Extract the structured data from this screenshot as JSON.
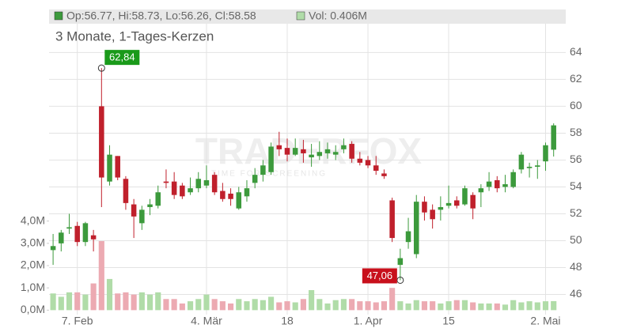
{
  "chart_data": {
    "type": "candlestick",
    "title": "3 Monate, 1-Tages-Kerzen",
    "header_ohlc": "Op:56.77, Hi:58.73, Lo:56.26, Cl:58.58",
    "header_volume": "Vol: 0.406M",
    "watermark": "TRADERFOX",
    "watermark_sub": "TIME FOR SCREENING",
    "up_color": "#3c9a3c",
    "down_color": "#c0202c",
    "up_volume_color": "#b0dca8",
    "down_volume_color": "#ecaab2",
    "x": [
      0,
      1,
      2,
      3,
      4,
      5,
      6,
      7,
      8,
      9,
      10,
      11,
      12,
      13,
      14,
      15,
      16,
      17,
      18,
      19,
      20,
      21,
      22,
      23,
      24,
      25,
      26,
      27,
      28,
      29,
      30,
      31,
      32,
      33,
      34,
      35,
      36,
      37,
      38,
      39,
      40,
      41,
      42,
      43,
      44,
      45,
      46,
      47,
      48,
      49,
      50,
      51,
      52,
      53,
      54,
      55,
      56,
      57,
      58,
      59,
      60,
      61,
      62
    ],
    "open": [
      49.3,
      49.8,
      50.9,
      51.1,
      49.9,
      50.4,
      60.0,
      54.4,
      56.3,
      54.6,
      52.7,
      51.3,
      52.5,
      52.6,
      54.4,
      54.4,
      54.1,
      53.6,
      53.9,
      54.1,
      54.9,
      53.7,
      53.5,
      52.4,
      53.3,
      54.3,
      54.9,
      55.1,
      57.1,
      56.9,
      56.4,
      56.8,
      56.2,
      56.3,
      56.5,
      56.4,
      56.8,
      57.2,
      56.1,
      56.0,
      55.6,
      55.0,
      53.0,
      48.2,
      49.9,
      49.0,
      52.9,
      52.3,
      52.3,
      52.6,
      53.0,
      52.7,
      53.4,
      53.6,
      54.0,
      54.5,
      54.0,
      54.0,
      55.3,
      55.4,
      55.5,
      55.9,
      56.77
    ],
    "high": [
      50.5,
      50.8,
      52.0,
      51.4,
      51.4,
      50.8,
      62.84,
      57.1,
      56.3,
      54.8,
      53.1,
      52.6,
      53.1,
      54.1,
      55.3,
      55.1,
      54.3,
      54.7,
      55.1,
      55.6,
      55.1,
      54.3,
      53.9,
      54.0,
      54.5,
      55.4,
      56.0,
      57.3,
      58.1,
      57.6,
      57.6,
      57.5,
      57.2,
      57.4,
      57.3,
      57.1,
      57.6,
      57.4,
      56.6,
      56.3,
      56.3,
      55.3,
      53.2,
      49.4,
      51.7,
      53.4,
      53.3,
      52.7,
      53.3,
      54.1,
      53.3,
      54.1,
      53.6,
      54.2,
      55.1,
      54.8,
      54.9,
      55.3,
      56.6,
      55.8,
      56.0,
      57.3,
      58.73
    ],
    "low": [
      48.2,
      49.2,
      50.5,
      49.6,
      49.6,
      49.2,
      52.5,
      54.1,
      54.5,
      52.3,
      50.2,
      50.8,
      51.9,
      52.4,
      53.9,
      53.1,
      53.1,
      53.4,
      53.6,
      53.9,
      53.4,
      52.9,
      52.6,
      52.3,
      52.9,
      53.9,
      54.4,
      54.9,
      56.3,
      55.9,
      56.3,
      55.8,
      55.5,
      56.0,
      56.1,
      56.0,
      56.5,
      55.8,
      55.6,
      55.4,
      54.9,
      54.6,
      49.9,
      47.06,
      49.4,
      48.7,
      51.5,
      50.9,
      51.5,
      52.4,
      52.4,
      52.6,
      51.6,
      52.5,
      53.7,
      53.6,
      53.6,
      53.9,
      55.0,
      54.7,
      54.6,
      55.2,
      56.26
    ],
    "close": [
      49.6,
      50.6,
      51.0,
      49.9,
      51.3,
      50.1,
      54.7,
      56.4,
      54.7,
      52.8,
      51.8,
      52.3,
      52.7,
      53.6,
      54.3,
      53.4,
      53.3,
      53.9,
      54.6,
      54.5,
      53.6,
      53.1,
      53.1,
      53.6,
      53.9,
      54.9,
      55.6,
      57.0,
      56.8,
      56.4,
      56.9,
      56.5,
      56.4,
      56.6,
      56.8,
      56.6,
      57.1,
      56.1,
      55.8,
      55.6,
      55.2,
      54.8,
      50.2,
      48.7,
      50.7,
      52.9,
      52.1,
      51.6,
      52.5,
      52.8,
      52.6,
      53.9,
      52.4,
      53.9,
      54.4,
      53.9,
      54.2,
      55.1,
      56.4,
      55.5,
      55.6,
      57.1,
      58.58
    ],
    "volume": [
      0.75,
      0.6,
      0.8,
      0.8,
      0.7,
      1.2,
      3.1,
      1.4,
      0.75,
      0.8,
      0.7,
      0.8,
      0.7,
      0.8,
      0.5,
      0.5,
      0.3,
      0.4,
      0.5,
      0.7,
      0.5,
      0.4,
      0.3,
      0.5,
      0.4,
      0.5,
      0.45,
      0.6,
      0.35,
      0.4,
      0.35,
      0.5,
      0.9,
      0.5,
      0.3,
      0.45,
      0.5,
      0.5,
      0.4,
      0.4,
      0.35,
      0.4,
      1.0,
      0.4,
      0.3,
      0.45,
      0.4,
      0.4,
      0.3,
      0.4,
      0.45,
      0.45,
      0.35,
      0.3,
      0.3,
      0.3,
      0.25,
      0.45,
      0.35,
      0.4,
      0.35,
      0.4,
      0.406
    ],
    "xlim": [
      -0.5,
      63.5
    ],
    "xticks": [
      {
        "value": 3,
        "label": "7. Feb"
      },
      {
        "value": 19,
        "label": "4. Mär"
      },
      {
        "value": 29,
        "label": "18"
      },
      {
        "value": 39,
        "label": "1. Apr"
      },
      {
        "value": 49,
        "label": "15"
      },
      {
        "value": 61,
        "label": "2. Mai"
      }
    ],
    "ylim": [
      44.5,
      67.2
    ],
    "yticks": [
      46,
      48,
      50,
      52,
      54,
      56,
      58,
      60,
      62,
      64
    ],
    "y2lim": [
      -0.2,
      13.5
    ],
    "y2ticks": [
      {
        "value": 0,
        "label": "0,0M"
      },
      {
        "value": 1,
        "label": "1,0M"
      },
      {
        "value": 2,
        "label": "2,0M"
      },
      {
        "value": 3,
        "label": "3,0M"
      },
      {
        "value": 4,
        "label": "4,0M"
      }
    ],
    "annotations": [
      {
        "x": 6,
        "value": 62.84,
        "label": "62,84",
        "color": "#1a9a1a"
      },
      {
        "x": 43,
        "value": 47.06,
        "label": "47,06",
        "color": "#c8101c"
      }
    ],
    "grid": true
  }
}
